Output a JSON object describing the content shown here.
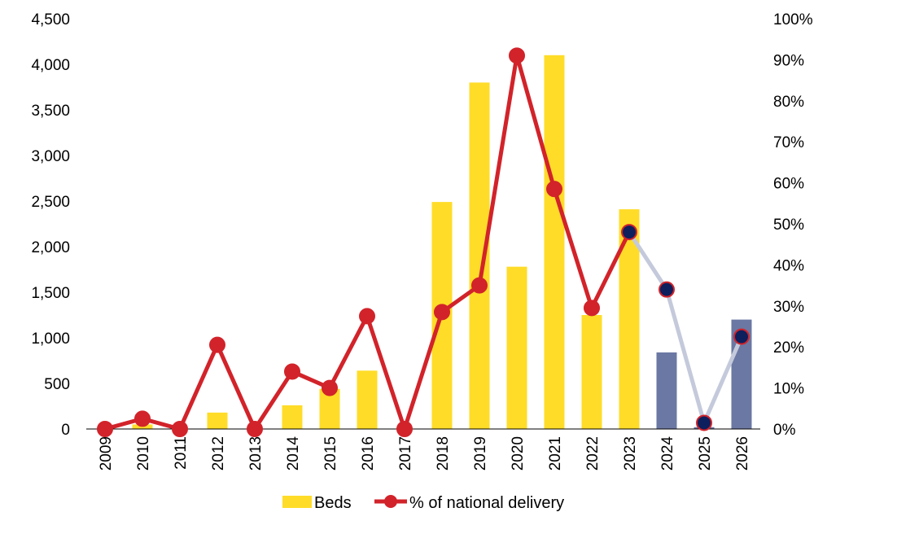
{
  "colors": {
    "bar_actual": "#FFDC28",
    "bar_forecast": "#6B78A3",
    "line_actual": "#D2232A",
    "line_forecast": "#C4CADB",
    "marker_forecast_fill": "#0D1F5C"
  },
  "chart_data": {
    "type": "bar",
    "categories": [
      "2009",
      "2010",
      "2011",
      "2012",
      "2013",
      "2014",
      "2015",
      "2016",
      "2017",
      "2018",
      "2019",
      "2020",
      "2021",
      "2022",
      "2023",
      "2024",
      "2025",
      "2026"
    ],
    "forecast_from_index": 15,
    "y_left": {
      "ylim": [
        0,
        4500
      ],
      "ticks": [
        0,
        500,
        1000,
        1500,
        2000,
        2500,
        3000,
        3500,
        4000,
        4500
      ],
      "tick_labels": [
        "0",
        "500",
        "1,000",
        "1,500",
        "2,000",
        "2,500",
        "3,000",
        "3,500",
        "4,000",
        "4,500"
      ]
    },
    "y_right": {
      "ylim": [
        0,
        1
      ],
      "ticks": [
        0,
        0.1,
        0.2,
        0.3,
        0.4,
        0.5,
        0.6,
        0.7,
        0.8,
        0.9,
        1.0
      ],
      "tick_labels": [
        "0%",
        "10%",
        "20%",
        "30%",
        "40%",
        "50%",
        "60%",
        "70%",
        "80%",
        "90%",
        "100%"
      ]
    },
    "series": [
      {
        "name": "Beds",
        "type": "bar",
        "axis": "left",
        "values": [
          0,
          50,
          0,
          180,
          0,
          260,
          440,
          640,
          0,
          2490,
          3800,
          1780,
          4100,
          1250,
          2410,
          840,
          20,
          1200
        ]
      },
      {
        "name": "% of national delivery",
        "type": "line",
        "axis": "right",
        "values": [
          0,
          0.025,
          0,
          0.205,
          0,
          0.14,
          0.1,
          0.275,
          0,
          0.285,
          0.35,
          0.91,
          0.585,
          0.295,
          0.48,
          0.34,
          0.015,
          0.225
        ]
      }
    ],
    "legend": {
      "position": "bottom",
      "entries": [
        "Beds",
        "% of national delivery"
      ]
    },
    "grid": false
  }
}
